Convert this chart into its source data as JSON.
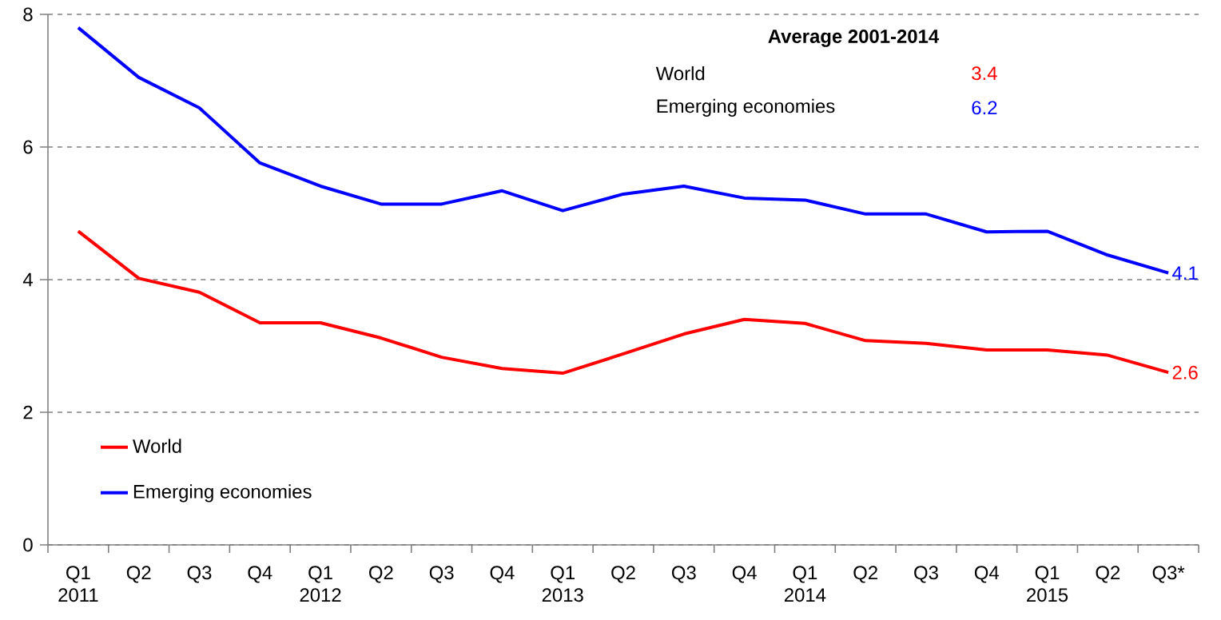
{
  "chart_data": {
    "type": "line",
    "categories": [
      "Q1 2011",
      "Q2",
      "Q3",
      "Q4",
      "Q1 2012",
      "Q2",
      "Q3",
      "Q4",
      "Q1 2013",
      "Q2",
      "Q3",
      "Q4",
      "Q1 2014",
      "Q2",
      "Q3",
      "Q4",
      "Q1 2015",
      "Q2",
      "Q3*"
    ],
    "series": [
      {
        "name": "World",
        "color": "#ff0000",
        "values": [
          4.73,
          4.02,
          3.81,
          3.35,
          3.35,
          3.12,
          2.83,
          2.66,
          2.59,
          2.88,
          3.18,
          3.4,
          3.34,
          3.08,
          3.04,
          2.94,
          2.94,
          2.86,
          2.6
        ],
        "value_labels": [
          null,
          null,
          null,
          null,
          null,
          null,
          null,
          null,
          null,
          null,
          null,
          null,
          null,
          null,
          null,
          null,
          null,
          null,
          "2.6"
        ]
      },
      {
        "name": "Emerging economies",
        "color": "#0000ff",
        "values": [
          7.8,
          7.05,
          6.59,
          5.76,
          5.41,
          5.14,
          5.14,
          5.34,
          5.04,
          5.29,
          5.41,
          5.23,
          5.2,
          4.99,
          4.99,
          4.72,
          4.73,
          4.37,
          4.1
        ],
        "value_labels": [
          null,
          null,
          null,
          null,
          null,
          null,
          null,
          null,
          null,
          null,
          null,
          null,
          null,
          null,
          null,
          null,
          null,
          null,
          "4.1"
        ]
      }
    ],
    "ylim": [
      0,
      8
    ],
    "yticks": [
      0,
      2,
      4,
      6,
      8
    ],
    "grid": "y",
    "legend": "bottom left",
    "annotations": [
      "Average 2001-2014",
      "World",
      "3.4",
      "Emerging economies",
      "6.2"
    ]
  }
}
